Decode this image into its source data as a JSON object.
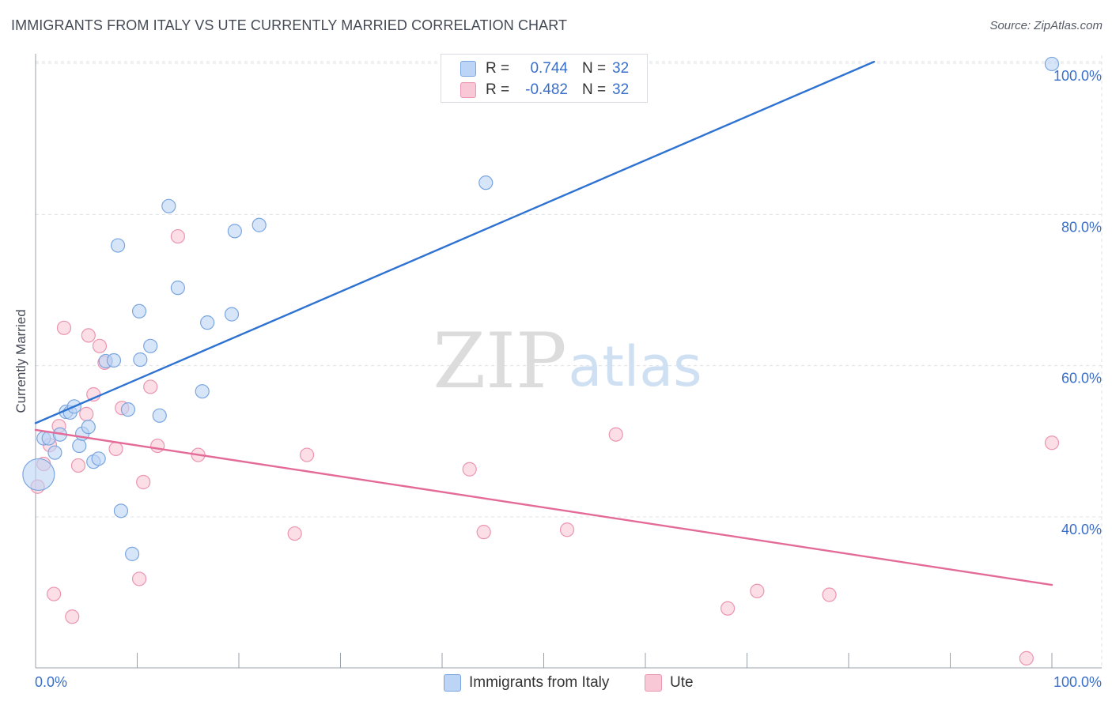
{
  "header": {
    "title": "IMMIGRANTS FROM ITALY VS UTE CURRENTLY MARRIED CORRELATION CHART",
    "source": "Source: ZipAtlas.com"
  },
  "watermark": {
    "zip": "ZIP",
    "atlas": "atlas"
  },
  "legend": {
    "series1": {
      "r_label": "R =",
      "r_value": "0.744",
      "n_label": "N =",
      "n_value": "32"
    },
    "series2": {
      "r_label": "R =",
      "r_value": "-0.482",
      "n_label": "N =",
      "n_value": "32"
    }
  },
  "bottom_legend": {
    "series1": "Immigrants from Italy",
    "series2": "Ute"
  },
  "colors": {
    "blue_fill": "#bcd4f5",
    "blue_stroke": "#7aa6e0",
    "blue_line": "#2e72d2",
    "pink_fill": "#f9c8d6",
    "pink_stroke": "#ec95b0",
    "pink_line": "#e46b98",
    "tick_label": "#3a6fc9",
    "grid": "#dde0e6"
  },
  "chart_data": {
    "type": "scatter",
    "title": "IMMIGRANTS FROM ITALY VS UTE CURRENTLY MARRIED CORRELATION CHART",
    "xlabel": "",
    "ylabel": "Currently Married",
    "xlim": [
      0,
      100
    ],
    "ylim": [
      20,
      101
    ],
    "x_tick_labels": [
      "0.0%",
      "100.0%"
    ],
    "y_ticks": [
      40,
      60,
      80,
      100
    ],
    "y_tick_labels": [
      "40.0%",
      "60.0%",
      "80.0%",
      "100.0%"
    ],
    "grid": true,
    "series": [
      {
        "name": "Immigrants from Italy",
        "color": "#2e72d2",
        "r": 0.744,
        "n": 32,
        "trend": {
          "x": [
            0,
            82.5
          ],
          "y": [
            52.4,
            100.2
          ]
        },
        "points": [
          {
            "x": 0.3,
            "y": 45.6,
            "big": true
          },
          {
            "x": 0.8,
            "y": 50.4
          },
          {
            "x": 1.3,
            "y": 50.4
          },
          {
            "x": 1.9,
            "y": 48.5
          },
          {
            "x": 2.4,
            "y": 50.9
          },
          {
            "x": 3.0,
            "y": 53.9
          },
          {
            "x": 3.4,
            "y": 53.8
          },
          {
            "x": 3.8,
            "y": 54.6
          },
          {
            "x": 4.3,
            "y": 49.4
          },
          {
            "x": 4.6,
            "y": 51.0
          },
          {
            "x": 5.2,
            "y": 51.9
          },
          {
            "x": 5.7,
            "y": 47.3
          },
          {
            "x": 6.2,
            "y": 47.7
          },
          {
            "x": 6.9,
            "y": 60.6
          },
          {
            "x": 7.7,
            "y": 60.7
          },
          {
            "x": 8.1,
            "y": 75.9
          },
          {
            "x": 8.4,
            "y": 40.8
          },
          {
            "x": 9.1,
            "y": 54.2
          },
          {
            "x": 9.5,
            "y": 35.1
          },
          {
            "x": 10.2,
            "y": 67.2
          },
          {
            "x": 10.3,
            "y": 60.8
          },
          {
            "x": 11.3,
            "y": 62.6
          },
          {
            "x": 12.2,
            "y": 53.4
          },
          {
            "x": 13.1,
            "y": 81.1
          },
          {
            "x": 14.0,
            "y": 70.3
          },
          {
            "x": 16.4,
            "y": 56.6
          },
          {
            "x": 16.9,
            "y": 65.7
          },
          {
            "x": 19.3,
            "y": 66.8
          },
          {
            "x": 19.6,
            "y": 77.8
          },
          {
            "x": 22.0,
            "y": 78.6
          },
          {
            "x": 44.3,
            "y": 84.2
          },
          {
            "x": 100.0,
            "y": 99.9
          }
        ]
      },
      {
        "name": "Ute",
        "color": "#e46b98",
        "r": -0.482,
        "n": 32,
        "trend": {
          "x": [
            0,
            100
          ],
          "y": [
            51.5,
            31.0
          ]
        },
        "points": [
          {
            "x": 0.2,
            "y": 44.0
          },
          {
            "x": 0.8,
            "y": 47.0
          },
          {
            "x": 1.4,
            "y": 49.5
          },
          {
            "x": 1.8,
            "y": 29.8
          },
          {
            "x": 2.3,
            "y": 52.0
          },
          {
            "x": 2.8,
            "y": 65.0
          },
          {
            "x": 3.6,
            "y": 26.8
          },
          {
            "x": 4.2,
            "y": 46.8
          },
          {
            "x": 5.0,
            "y": 53.6
          },
          {
            "x": 5.2,
            "y": 64.0
          },
          {
            "x": 5.7,
            "y": 56.2
          },
          {
            "x": 6.3,
            "y": 62.6
          },
          {
            "x": 6.8,
            "y": 60.4
          },
          {
            "x": 7.9,
            "y": 49.0
          },
          {
            "x": 8.5,
            "y": 54.4
          },
          {
            "x": 10.2,
            "y": 31.8
          },
          {
            "x": 10.6,
            "y": 44.6
          },
          {
            "x": 11.3,
            "y": 57.2
          },
          {
            "x": 12.0,
            "y": 49.4
          },
          {
            "x": 14.0,
            "y": 77.1
          },
          {
            "x": 16.0,
            "y": 48.2
          },
          {
            "x": 25.5,
            "y": 37.8
          },
          {
            "x": 26.7,
            "y": 48.2
          },
          {
            "x": 42.7,
            "y": 46.3
          },
          {
            "x": 44.1,
            "y": 38.0
          },
          {
            "x": 52.3,
            "y": 38.3
          },
          {
            "x": 57.1,
            "y": 50.9
          },
          {
            "x": 68.1,
            "y": 27.9
          },
          {
            "x": 71.0,
            "y": 30.2
          },
          {
            "x": 78.1,
            "y": 29.7
          },
          {
            "x": 97.5,
            "y": 21.3
          },
          {
            "x": 100.0,
            "y": 49.8
          }
        ]
      }
    ]
  }
}
